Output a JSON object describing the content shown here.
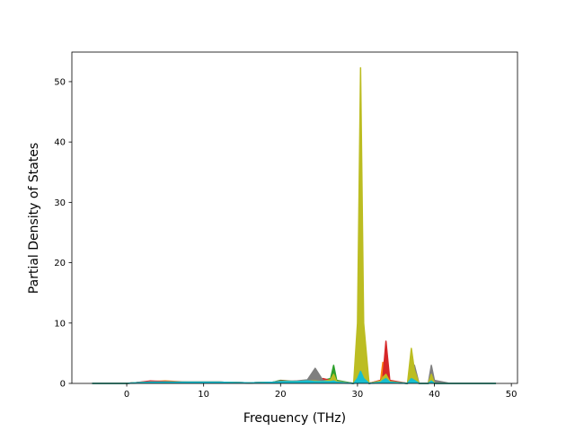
{
  "chart_data": {
    "type": "line",
    "filled": true,
    "xlabel": "Frequency (THz)",
    "ylabel": "Partial Density of States",
    "xlim": [
      -7.13,
      50.8
    ],
    "ylim": [
      0,
      54.9
    ],
    "xticks": [
      0,
      10,
      20,
      30,
      40,
      50
    ],
    "yticks": [
      0,
      10,
      20,
      30,
      40,
      50
    ],
    "x": [
      -4.5,
      0,
      1,
      3,
      5,
      8,
      12,
      16,
      19,
      20,
      22,
      23.5,
      24.5,
      25.5,
      26.5,
      26.9,
      27.3,
      29.5,
      30,
      30.4,
      30.8,
      31.5,
      33,
      33.3,
      33.7,
      34.2,
      36.5,
      37,
      37.4,
      38,
      39.2,
      39.6,
      40,
      42,
      48
    ],
    "series": [
      {
        "color": "#1f77b4",
        "values": [
          0,
          0,
          0.1,
          0.2,
          0.2,
          0.2,
          0.2,
          0.1,
          0.2,
          0.3,
          0.3,
          0.4,
          0.3,
          0.2,
          0.3,
          0.4,
          0.2,
          0,
          0.5,
          2,
          0.5,
          0,
          0.2,
          0.3,
          0.5,
          0.2,
          0,
          0.4,
          0.3,
          0,
          0,
          0.3,
          0,
          0,
          0
        ]
      },
      {
        "color": "#ff7f0e",
        "values": [
          0,
          0,
          0.1,
          0.3,
          0.4,
          0.2,
          0.2,
          0.1,
          0.2,
          0.3,
          0.3,
          0.3,
          0.5,
          0.4,
          0.5,
          0.6,
          0.3,
          0,
          1,
          3,
          1,
          0,
          0.5,
          3.5,
          0.8,
          0.2,
          0,
          1,
          0.6,
          0,
          0,
          0.5,
          0,
          0,
          0
        ]
      },
      {
        "color": "#2ca02c",
        "values": [
          0,
          0,
          0.1,
          0.3,
          0.3,
          0.2,
          0.2,
          0.1,
          0.2,
          0.5,
          0.3,
          0.4,
          0.6,
          0.5,
          0.8,
          3,
          0.5,
          0,
          1,
          4,
          1,
          0,
          0.4,
          1,
          1.5,
          0.3,
          0,
          3.5,
          1.5,
          0,
          0,
          0.8,
          0,
          0,
          0
        ]
      },
      {
        "color": "#d62728",
        "values": [
          0,
          0,
          0.1,
          0.4,
          0.3,
          0.2,
          0.2,
          0.1,
          0.2,
          0.4,
          0.3,
          0.3,
          0.4,
          0.8,
          0.5,
          0.7,
          0.3,
          0,
          1.5,
          6,
          1.5,
          0,
          0.5,
          1,
          7,
          0.5,
          0,
          3.5,
          1.2,
          0,
          0,
          1,
          0,
          0,
          0
        ]
      },
      {
        "color": "#9467bd",
        "values": [
          0,
          0,
          0.1,
          0.2,
          0.2,
          0.2,
          0.2,
          0.1,
          0.2,
          0.3,
          0.3,
          0.4,
          0.5,
          0.4,
          0.4,
          0.5,
          0.3,
          0,
          4,
          16,
          4,
          0,
          0.3,
          0.8,
          1.2,
          0.2,
          0,
          1,
          0.8,
          0,
          0,
          0.7,
          0,
          0,
          0
        ]
      },
      {
        "color": "#7f7f7f",
        "values": [
          0,
          0,
          0.1,
          0.2,
          0.2,
          0.2,
          0.2,
          0.1,
          0.2,
          0.3,
          0.4,
          0.6,
          2.5,
          0.5,
          0.5,
          0.6,
          0.3,
          0,
          1,
          3,
          1,
          0,
          0.3,
          0.7,
          1,
          0.2,
          0,
          2,
          3,
          0,
          0,
          3,
          0.5,
          0,
          0
        ]
      },
      {
        "color": "#bcbd22",
        "values": [
          0,
          0,
          0.1,
          0.2,
          0.2,
          0.2,
          0.2,
          0.1,
          0.2,
          0.3,
          0.3,
          0.4,
          0.4,
          0.3,
          0.6,
          1.5,
          0.3,
          0,
          10,
          52.3,
          10,
          0,
          0.4,
          1,
          1.5,
          0.3,
          0,
          5.8,
          2.2,
          0,
          0,
          1.5,
          0,
          0,
          0
        ]
      },
      {
        "color": "#17becf",
        "values": [
          0,
          0,
          0.1,
          0.2,
          0.2,
          0.2,
          0.2,
          0.1,
          0.2,
          0.3,
          0.3,
          0.4,
          0.3,
          0.3,
          0.3,
          0.4,
          0.2,
          0,
          0.8,
          2,
          0.8,
          0,
          0.2,
          0.5,
          0.8,
          0.2,
          0,
          0.8,
          0.5,
          0,
          0,
          0.4,
          0,
          0,
          0
        ]
      }
    ]
  }
}
